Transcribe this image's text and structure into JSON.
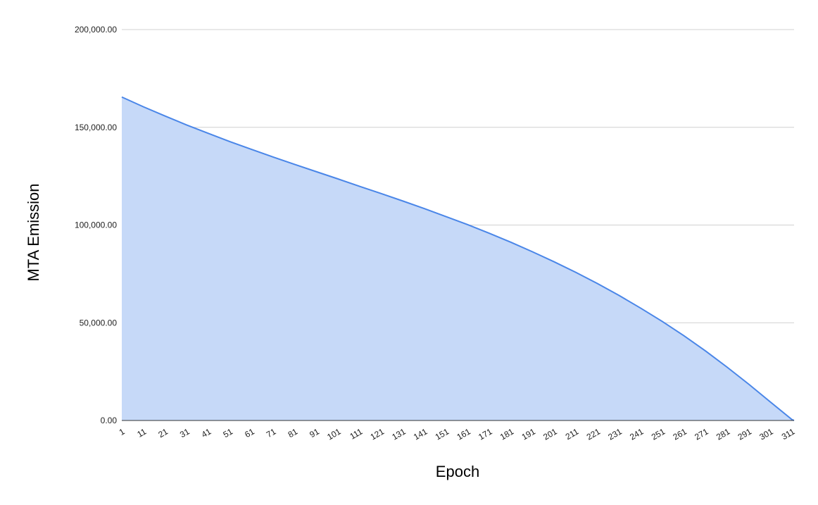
{
  "chart_data": {
    "type": "area",
    "title": "",
    "xlabel": "Epoch",
    "ylabel": "MTA Emission",
    "x_ticks": [
      "1",
      "11",
      "21",
      "31",
      "41",
      "51",
      "61",
      "71",
      "81",
      "91",
      "101",
      "111",
      "121",
      "131",
      "141",
      "151",
      "161",
      "171",
      "181",
      "191",
      "201",
      "211",
      "221",
      "231",
      "241",
      "251",
      "261",
      "271",
      "281",
      "291",
      "301",
      "311"
    ],
    "y_ticks": [
      "0.00",
      "50,000.00",
      "100,000.00",
      "150,000.00",
      "200,000.00"
    ],
    "ylim": [
      0,
      200000
    ],
    "xlim": [
      1,
      312
    ],
    "grid": true,
    "series": [
      {
        "x": [
          1,
          11,
          21,
          31,
          41,
          51,
          61,
          71,
          81,
          91,
          101,
          111,
          121,
          131,
          141,
          151,
          161,
          171,
          181,
          191,
          201,
          211,
          221,
          231,
          241,
          251,
          261,
          271,
          281,
          291,
          301,
          311,
          312
        ],
        "values": [
          165500,
          160500,
          155800,
          151200,
          146900,
          142700,
          138700,
          134800,
          131000,
          127300,
          123600,
          119800,
          116100,
          112300,
          108400,
          104300,
          100200,
          95800,
          91200,
          86300,
          81200,
          75800,
          70100,
          64000,
          57500,
          50700,
          43400,
          35600,
          27300,
          18600,
          9500,
          500,
          0
        ]
      }
    ],
    "colors": {
      "line": "#4a86e8",
      "fill": "#c6d9f8",
      "grid": "#d0d0d0",
      "axis": "#333333"
    }
  }
}
